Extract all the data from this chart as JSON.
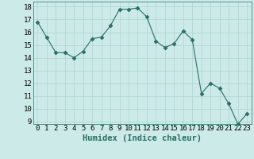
{
  "x": [
    0,
    1,
    2,
    3,
    4,
    5,
    6,
    7,
    8,
    9,
    10,
    11,
    12,
    13,
    14,
    15,
    16,
    17,
    18,
    19,
    20,
    21,
    22,
    23
  ],
  "y": [
    16.8,
    15.6,
    14.4,
    14.4,
    14.0,
    14.5,
    15.5,
    15.6,
    16.5,
    17.8,
    17.8,
    17.9,
    17.2,
    15.3,
    14.8,
    15.1,
    16.1,
    15.4,
    11.2,
    12.0,
    11.6,
    10.4,
    8.8,
    9.6
  ],
  "line_color": "#2a6e63",
  "marker": "D",
  "marker_size": 2.5,
  "bg_color": "#cceae8",
  "grid_color": "#afd4d0",
  "xlabel": "Humidex (Indice chaleur)",
  "xlim": [
    -0.5,
    23.5
  ],
  "ylim": [
    8.8,
    18.4
  ],
  "yticks": [
    9,
    10,
    11,
    12,
    13,
    14,
    15,
    16,
    17,
    18
  ],
  "xticks": [
    0,
    1,
    2,
    3,
    4,
    5,
    6,
    7,
    8,
    9,
    10,
    11,
    12,
    13,
    14,
    15,
    16,
    17,
    18,
    19,
    20,
    21,
    22,
    23
  ],
  "xlabel_fontsize": 7.5,
  "tick_fontsize": 6.5
}
